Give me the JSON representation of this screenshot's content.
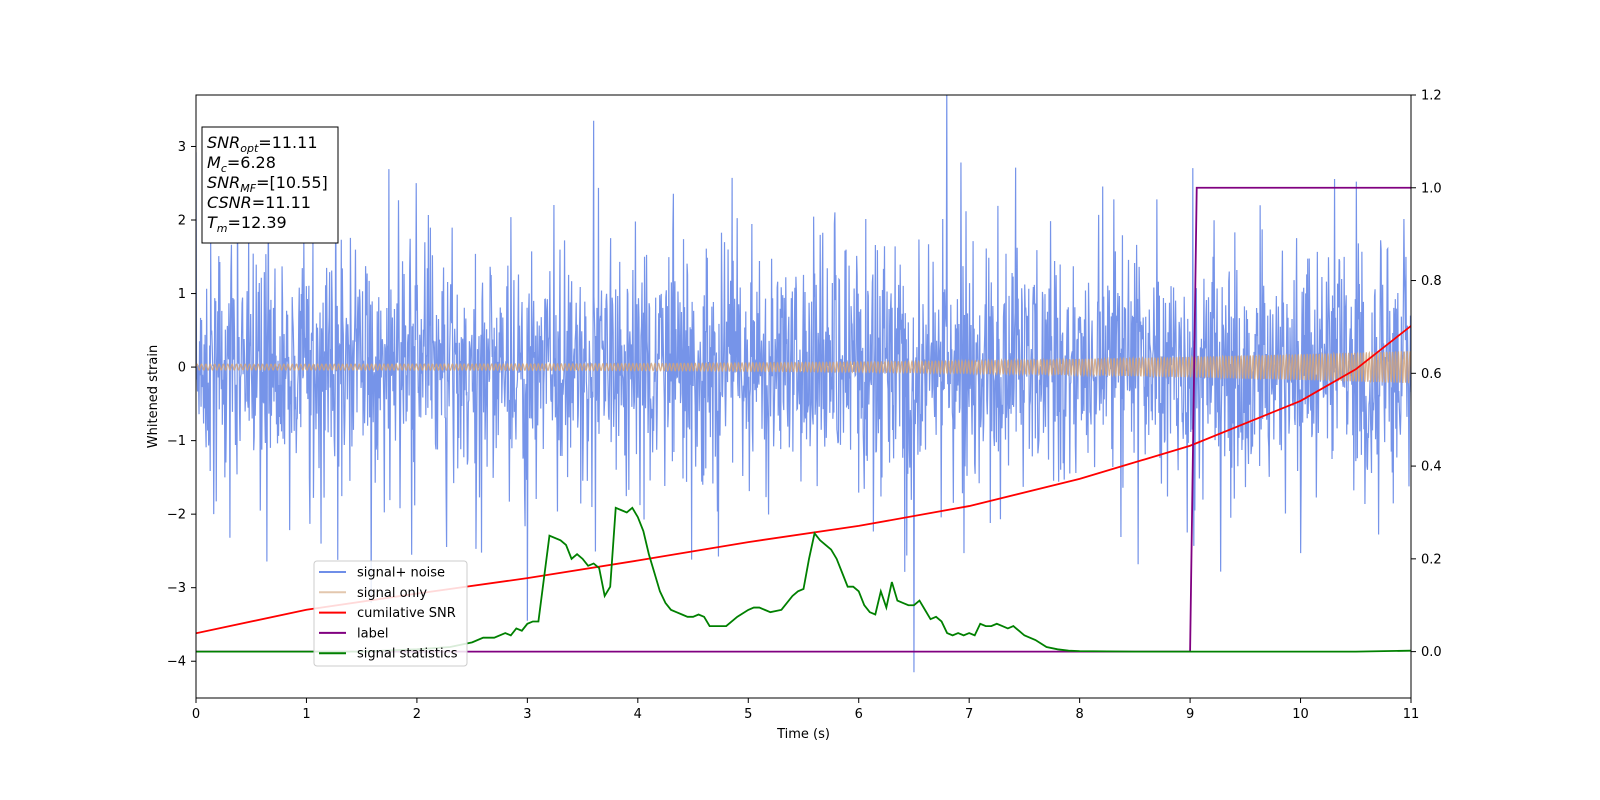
{
  "chart_data": {
    "type": "line",
    "xlabel": "Time (s)",
    "ylabel": "Whitened strain",
    "xlim": [
      0,
      11
    ],
    "ylim": [
      -4.5,
      3.7
    ],
    "y2lim": [
      -0.1,
      1.2
    ],
    "xticks": [
      "0",
      "1",
      "2",
      "3",
      "4",
      "5",
      "6",
      "7",
      "8",
      "9",
      "10",
      "11"
    ],
    "yticks": [
      "3",
      "2",
      "1",
      "0",
      "−1",
      "−2",
      "−3",
      "−4"
    ],
    "y2ticks": [
      "1.2",
      "1.0",
      "0.8",
      "0.6",
      "0.4",
      "0.2",
      "0.0"
    ],
    "grid": false,
    "legend_location": "lower-left",
    "legend": [
      "signal+ noise",
      "signal only",
      "cumilative SNR",
      "label",
      "signal statistics"
    ],
    "info_box": [
      {
        "main": "SNR",
        "sub": "opt",
        "rest": "=11.11"
      },
      {
        "main": "M",
        "sub": "c",
        "rest": "=6.28"
      },
      {
        "main": "SNR",
        "sub": "MF",
        "rest": "=[10.55]"
      },
      {
        "main": "CSNR",
        "sub": "",
        "rest": "=11.11"
      },
      {
        "main": "T",
        "sub": "m",
        "rest": "=12.39"
      }
    ],
    "series": [
      {
        "name": "signal+ noise",
        "axis": "left",
        "color": "#6f8ee8",
        "kind": "noise",
        "std": 0.75,
        "spikes_up": 2.9,
        "spikes_down": -2.7,
        "peaks": [
          {
            "x": 3.6,
            "y": 3.35
          },
          {
            "x": 6.5,
            "y": -4.15
          },
          {
            "x": 3.0,
            "y": -3.45
          }
        ]
      },
      {
        "name": "signal only",
        "axis": "left",
        "color": "#d2a37a",
        "kind": "chirp",
        "amplitude_start": 0.04,
        "amplitude_end": 0.22
      },
      {
        "name": "cumilative SNR",
        "axis": "left",
        "color": "#ff0000",
        "x": [
          0,
          1,
          2,
          3,
          4,
          5,
          6,
          7,
          8,
          9,
          10,
          10.5,
          11
        ],
        "y": [
          -3.62,
          -3.3,
          -3.08,
          -2.87,
          -2.63,
          -2.38,
          -2.16,
          -1.89,
          -1.52,
          -1.07,
          -0.46,
          -0.03,
          0.56
        ]
      },
      {
        "name": "label",
        "axis": "right",
        "color": "#800080",
        "x": [
          0,
          9.0,
          9.06,
          11
        ],
        "y": [
          0,
          0,
          1.0,
          1.0
        ]
      },
      {
        "name": "signal statistics",
        "axis": "right",
        "color": "#008000",
        "x": [
          0,
          0.5,
          1,
          1.5,
          2,
          2.3,
          2.5,
          2.6,
          2.7,
          2.8,
          2.85,
          2.9,
          2.95,
          3.0,
          3.05,
          3.1,
          3.2,
          3.3,
          3.35,
          3.4,
          3.45,
          3.5,
          3.55,
          3.6,
          3.65,
          3.7,
          3.75,
          3.8,
          3.85,
          3.9,
          3.95,
          4.0,
          4.05,
          4.1,
          4.15,
          4.2,
          4.25,
          4.3,
          4.35,
          4.4,
          4.45,
          4.5,
          4.55,
          4.6,
          4.65,
          4.7,
          4.8,
          4.9,
          5.0,
          5.05,
          5.1,
          5.15,
          5.2,
          5.3,
          5.4,
          5.45,
          5.5,
          5.55,
          5.6,
          5.65,
          5.7,
          5.75,
          5.8,
          5.85,
          5.9,
          5.95,
          6.0,
          6.05,
          6.1,
          6.15,
          6.2,
          6.25,
          6.3,
          6.35,
          6.4,
          6.45,
          6.5,
          6.55,
          6.6,
          6.65,
          6.7,
          6.75,
          6.8,
          6.85,
          6.9,
          6.95,
          7.0,
          7.05,
          7.1,
          7.15,
          7.2,
          7.25,
          7.3,
          7.35,
          7.4,
          7.45,
          7.5,
          7.6,
          7.7,
          7.8,
          7.9,
          8.0,
          8.5,
          9.0,
          9.5,
          10.0,
          10.5,
          11.0
        ],
        "y": [
          0,
          0,
          0,
          0,
          0.005,
          0.01,
          0.02,
          0.03,
          0.03,
          0.04,
          0.035,
          0.05,
          0.045,
          0.06,
          0.065,
          0.065,
          0.25,
          0.24,
          0.23,
          0.2,
          0.21,
          0.2,
          0.185,
          0.19,
          0.18,
          0.12,
          0.14,
          0.31,
          0.305,
          0.3,
          0.31,
          0.29,
          0.26,
          0.21,
          0.17,
          0.13,
          0.105,
          0.09,
          0.085,
          0.08,
          0.075,
          0.075,
          0.08,
          0.075,
          0.055,
          0.055,
          0.055,
          0.075,
          0.09,
          0.095,
          0.095,
          0.09,
          0.085,
          0.09,
          0.12,
          0.13,
          0.135,
          0.2,
          0.255,
          0.24,
          0.23,
          0.22,
          0.2,
          0.17,
          0.14,
          0.14,
          0.13,
          0.1,
          0.085,
          0.08,
          0.13,
          0.095,
          0.15,
          0.11,
          0.105,
          0.1,
          0.1,
          0.11,
          0.09,
          0.07,
          0.075,
          0.065,
          0.04,
          0.035,
          0.04,
          0.035,
          0.04,
          0.035,
          0.06,
          0.055,
          0.055,
          0.06,
          0.055,
          0.05,
          0.055,
          0.045,
          0.035,
          0.025,
          0.01,
          0.005,
          0.002,
          0.001,
          0,
          0,
          0,
          0,
          0,
          0.002
        ]
      }
    ]
  }
}
